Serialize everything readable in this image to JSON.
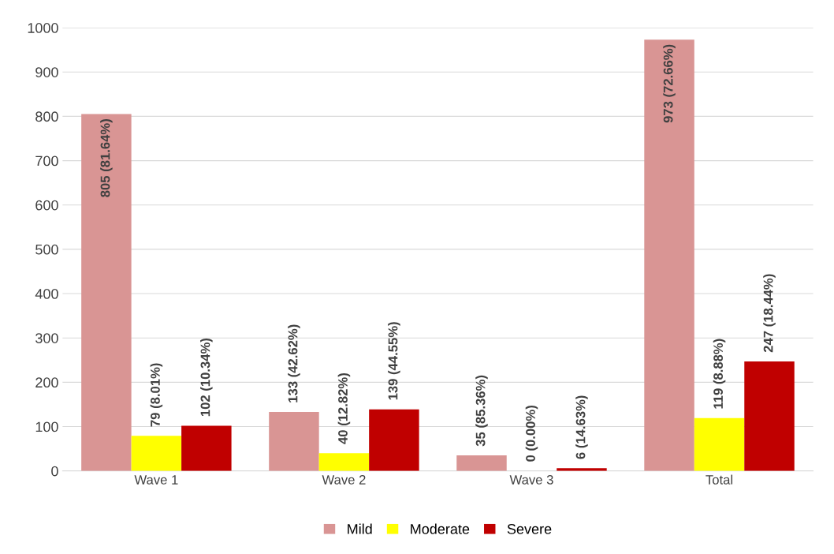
{
  "chart_data": {
    "type": "bar",
    "categories": [
      "Wave 1",
      "Wave 2",
      "Wave 3",
      "Total"
    ],
    "series": [
      {
        "name": "Mild",
        "color": "#d99594",
        "values": [
          805,
          133,
          35,
          973
        ],
        "value_labels": [
          "805 (81.64%)",
          "133 (42.62%)",
          "35 (85.36%)",
          "973 (72.66%)"
        ]
      },
      {
        "name": "Moderate",
        "color": "#ffff00",
        "values": [
          79,
          40,
          0,
          119
        ],
        "value_labels": [
          "79 (8.01%)",
          "40 (12.82%)",
          "0 (0.00%)",
          "119 (8.88%)"
        ]
      },
      {
        "name": "Severe",
        "color": "#c00000",
        "values": [
          102,
          139,
          6,
          247
        ],
        "value_labels": [
          "102 (10.34%)",
          "139 (44.55%)",
          "6 (14.63%)",
          "247 (18.44%)"
        ]
      }
    ],
    "ylim": [
      0,
      1000
    ],
    "yticks": [
      0,
      100,
      200,
      300,
      400,
      500,
      600,
      700,
      800,
      900,
      1000
    ],
    "grid": "y",
    "legend": "bottom"
  }
}
